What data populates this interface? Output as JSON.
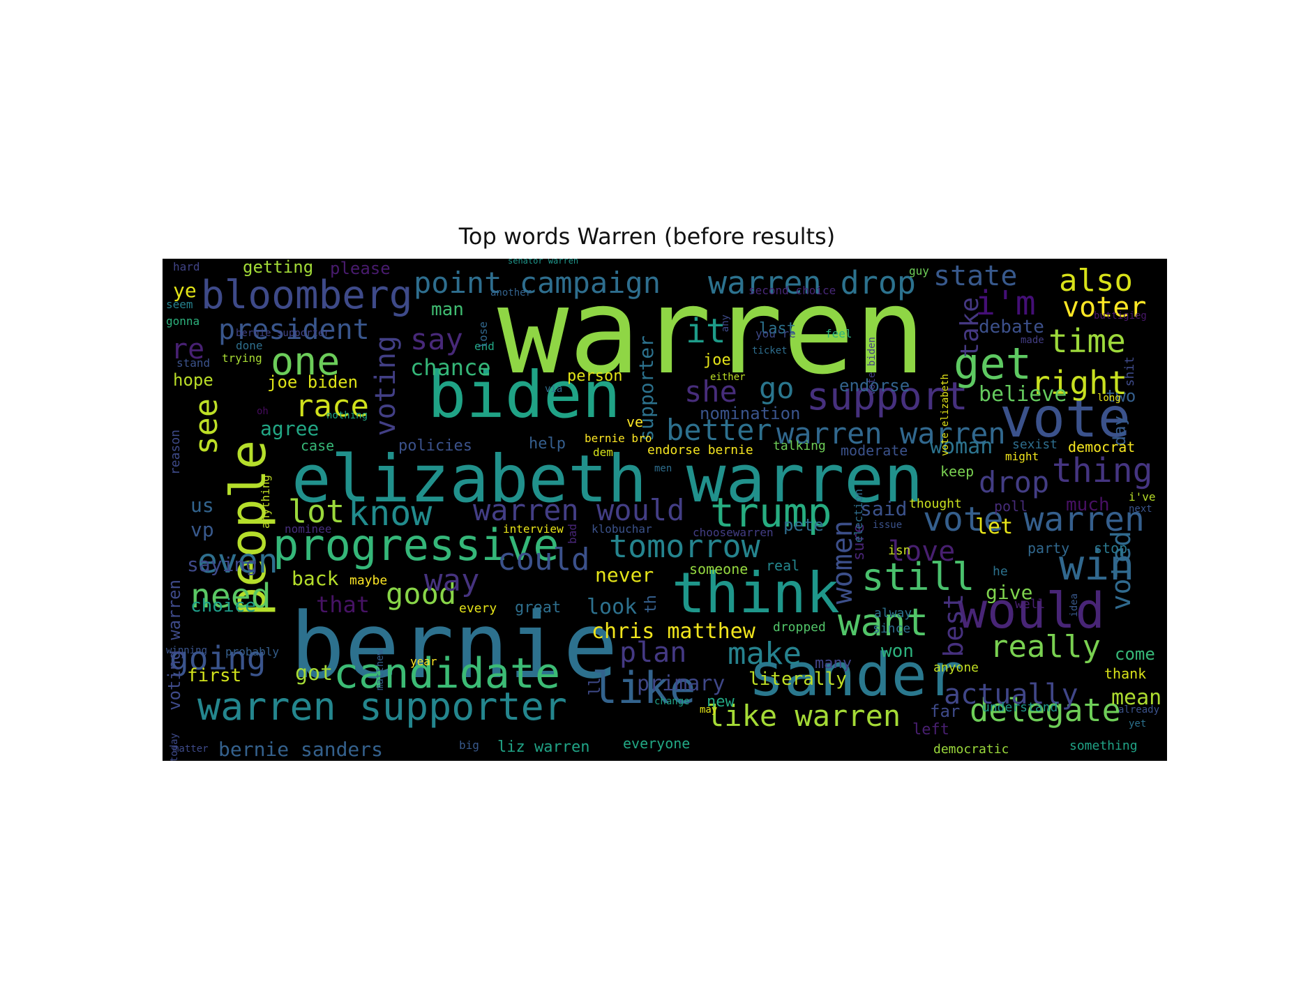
{
  "title": "Top words Warren (before results)",
  "words": [
    {
      "text": "warren",
      "color": "#8fd645"
    },
    {
      "text": "bernie",
      "color": "#2d718e"
    },
    {
      "text": "elizabeth warren",
      "color": "#21918c"
    },
    {
      "text": "biden",
      "color": "#20a386"
    },
    {
      "text": "sander",
      "color": "#2a788e"
    },
    {
      "text": "think",
      "color": "#1f978b"
    },
    {
      "text": "people",
      "color": "#b5de2b"
    },
    {
      "text": "vote",
      "color": "#3b528b"
    },
    {
      "text": "would",
      "color": "#482576"
    },
    {
      "text": "progressive",
      "color": "#35b779"
    },
    {
      "text": "candidate",
      "color": "#3cbb75"
    },
    {
      "text": "warren supporter",
      "color": "#24868e"
    },
    {
      "text": "like",
      "color": "#33638d"
    },
    {
      "text": "bloomberg",
      "color": "#3e4a89"
    },
    {
      "text": "trump",
      "color": "#27ad81"
    },
    {
      "text": "win",
      "color": "#31688e"
    },
    {
      "text": "get",
      "color": "#5ec962"
    },
    {
      "text": "support",
      "color": "#46307e"
    },
    {
      "text": "still",
      "color": "#4ac16d"
    },
    {
      "text": "want",
      "color": "#52c569"
    },
    {
      "text": "warren drop",
      "color": "#2c728e"
    },
    {
      "text": "point campaign",
      "color": "#2e6e8e"
    },
    {
      "text": "vote warren",
      "color": "#355f8d"
    },
    {
      "text": "warren warren",
      "color": "#31688e"
    },
    {
      "text": "tomorrow",
      "color": "#25848e"
    },
    {
      "text": "one",
      "color": "#6ccd5a"
    },
    {
      "text": "know",
      "color": "#228c8d"
    },
    {
      "text": "president",
      "color": "#39568c"
    },
    {
      "text": "also",
      "color": "#d8e219"
    },
    {
      "text": "time",
      "color": "#9dd93b"
    },
    {
      "text": "right",
      "color": "#c8e020"
    },
    {
      "text": "voter",
      "color": "#fde725"
    },
    {
      "text": "delegate",
      "color": "#6ece58"
    },
    {
      "text": "really",
      "color": "#7ad151"
    },
    {
      "text": "like warren",
      "color": "#a5db36"
    },
    {
      "text": "make",
      "color": "#26828e"
    },
    {
      "text": "going",
      "color": "#3a548c"
    },
    {
      "text": "need",
      "color": "#5ac864"
    },
    {
      "text": "even",
      "color": "#2e6f8e"
    },
    {
      "text": "could",
      "color": "#3b518b"
    },
    {
      "text": "good",
      "color": "#88d548"
    },
    {
      "text": "warren would",
      "color": "#433e85"
    },
    {
      "text": "lot",
      "color": "#9bd93c"
    },
    {
      "text": "race",
      "color": "#d0e11c"
    },
    {
      "text": "see",
      "color": "#bddf26"
    },
    {
      "text": "say",
      "color": "#482979"
    },
    {
      "text": "it",
      "color": "#1e9c89"
    },
    {
      "text": "i'm",
      "color": "#440f76"
    },
    {
      "text": "thing",
      "color": "#453581"
    },
    {
      "text": "drop",
      "color": "#433d84"
    },
    {
      "text": "better",
      "color": "#2d708e"
    },
    {
      "text": "she",
      "color": "#472d7b"
    },
    {
      "text": "go",
      "color": "#2a768e"
    },
    {
      "text": "love",
      "color": "#481f70"
    },
    {
      "text": "way",
      "color": "#46337f"
    },
    {
      "text": "plan",
      "color": "#443983"
    },
    {
      "text": "actually",
      "color": "#404688"
    },
    {
      "text": "voting",
      "color": "#423f85"
    },
    {
      "text": "voted",
      "color": "#306a8e"
    },
    {
      "text": "women",
      "color": "#3c4f8a"
    },
    {
      "text": "best",
      "color": "#46307e"
    },
    {
      "text": "take",
      "color": "#453882"
    },
    {
      "text": "state",
      "color": "#38598c"
    },
    {
      "text": "chris matthew",
      "color": "#f1e51d"
    },
    {
      "text": "bernie sanders",
      "color": "#34618d"
    },
    {
      "text": "primary",
      "color": "#3f4788"
    },
    {
      "text": "literally",
      "color": "#c0df25"
    },
    {
      "text": "mean",
      "color": "#addc30"
    },
    {
      "text": "woman",
      "color": "#2c738e"
    },
    {
      "text": "believe",
      "color": "#65cb5e"
    },
    {
      "text": "debate",
      "color": "#3c508b"
    },
    {
      "text": "nomination",
      "color": "#3a548c"
    },
    {
      "text": "endorse",
      "color": "#33638d"
    },
    {
      "text": "supporter",
      "color": "#2c728e"
    },
    {
      "text": "chance",
      "color": "#35b779"
    },
    {
      "text": "agree",
      "color": "#22a785"
    },
    {
      "text": "man",
      "color": "#40bd72"
    },
    {
      "text": "ye",
      "color": "#e2e418"
    },
    {
      "text": "re",
      "color": "#482173"
    },
    {
      "text": "saying",
      "color": "#3e4989"
    },
    {
      "text": "back",
      "color": "#b5de2b"
    },
    {
      "text": "that",
      "color": "#471365"
    },
    {
      "text": "choice",
      "color": "#1f9e89"
    },
    {
      "text": "first",
      "color": "#d0e11c"
    },
    {
      "text": "got",
      "color": "#a5db36"
    },
    {
      "text": "us",
      "color": "#32648e"
    },
    {
      "text": "vp",
      "color": "#38598c"
    },
    {
      "text": "look",
      "color": "#2d718e"
    },
    {
      "text": "never",
      "color": "#e5e419"
    },
    {
      "text": "give",
      "color": "#7fd34e"
    },
    {
      "text": "let",
      "color": "#e7e419"
    },
    {
      "text": "said",
      "color": "#3b528b"
    },
    {
      "text": "pete",
      "color": "#2e6e8e"
    },
    {
      "text": "won",
      "color": "#2db27d"
    },
    {
      "text": "come",
      "color": "#37b878"
    },
    {
      "text": "two",
      "color": "#355f8d"
    },
    {
      "text": "day",
      "color": "#365c8d"
    },
    {
      "text": "joe biden",
      "color": "#dde318"
    },
    {
      "text": "hope",
      "color": "#bade28"
    },
    {
      "text": "getting",
      "color": "#a2da37"
    },
    {
      "text": "please",
      "color": "#481b6d"
    },
    {
      "text": "person",
      "color": "#e2e418"
    },
    {
      "text": "last",
      "color": "#2c728e"
    },
    {
      "text": "joe",
      "color": "#e5e419"
    },
    {
      "text": "policies",
      "color": "#3b528b"
    },
    {
      "text": "case",
      "color": "#37b878"
    },
    {
      "text": "far",
      "color": "#3e4a89"
    },
    {
      "text": "thank",
      "color": "#d8e219"
    },
    {
      "text": "keep",
      "color": "#7ad151"
    },
    {
      "text": "democrat",
      "color": "#f6e620"
    },
    {
      "text": "party",
      "color": "#31688e"
    },
    {
      "text": "stop",
      "color": "#2a788e"
    },
    {
      "text": "much",
      "color": "#471063"
    },
    {
      "text": "many",
      "color": "#414487"
    },
    {
      "text": "new",
      "color": "#22a884"
    },
    {
      "text": "liz warren",
      "color": "#20a386"
    },
    {
      "text": "everyone",
      "color": "#22a884"
    },
    {
      "text": "dropped",
      "color": "#52c569"
    },
    {
      "text": "someone",
      "color": "#95d840"
    },
    {
      "text": "real",
      "color": "#24878e"
    },
    {
      "text": "understand",
      "color": "#1f968b"
    },
    {
      "text": "democratic",
      "color": "#9bd93c"
    },
    {
      "text": "something",
      "color": "#20a386"
    },
    {
      "text": "anyone",
      "color": "#c2df23"
    },
    {
      "text": "help",
      "color": "#355e8d"
    },
    {
      "text": "talking",
      "color": "#6ece58"
    },
    {
      "text": "moderate",
      "color": "#3b528b"
    },
    {
      "text": "endorse bernie",
      "color": "#f6e620"
    },
    {
      "text": "maybe",
      "color": "#fde725"
    },
    {
      "text": "every",
      "color": "#e5e419"
    },
    {
      "text": "great",
      "color": "#2e6f8e"
    },
    {
      "text": "thought",
      "color": "#cae11f"
    },
    {
      "text": "poll",
      "color": "#472c7a"
    },
    {
      "text": "sexist",
      "color": "#2e6e8e"
    },
    {
      "text": "might",
      "color": "#f1e51d"
    },
    {
      "text": "i've",
      "color": "#b8de29"
    },
    {
      "text": "next",
      "color": "#3a548c"
    },
    {
      "text": "isn",
      "color": "#c8e020"
    },
    {
      "text": "issue",
      "color": "#3b528b"
    },
    {
      "text": "he",
      "color": "#2c728e"
    },
    {
      "text": "well",
      "color": "#481f70"
    },
    {
      "text": "alway",
      "color": "#2c728e"
    },
    {
      "text": "since",
      "color": "#2e6f8e"
    },
    {
      "text": "sure",
      "color": "#482475"
    },
    {
      "text": "ve",
      "color": "#fde725"
    },
    {
      "text": "bernie bro",
      "color": "#fde725"
    },
    {
      "text": "dem",
      "color": "#d5e21a"
    },
    {
      "text": "men",
      "color": "#2e6e8e"
    },
    {
      "text": "nominee",
      "color": "#472f7d"
    },
    {
      "text": "klobuchar",
      "color": "#3b528b"
    },
    {
      "text": "choosewarren",
      "color": "#433e85"
    },
    {
      "text": "interview",
      "color": "#e8e419"
    },
    {
      "text": "year",
      "color": "#fde725"
    },
    {
      "text": "change",
      "color": "#1fa187"
    },
    {
      "text": "may",
      "color": "#e2e418"
    },
    {
      "text": "big",
      "color": "#38598c"
    },
    {
      "text": "matter",
      "color": "#3e4a89"
    },
    {
      "text": "winning",
      "color": "#3a548c"
    },
    {
      "text": "probably",
      "color": "#355f8d"
    },
    {
      "text": "done",
      "color": "#2e6f8e"
    },
    {
      "text": "trying",
      "color": "#a8db34"
    },
    {
      "text": "stand",
      "color": "#3b528b"
    },
    {
      "text": "seem",
      "color": "#26828e"
    },
    {
      "text": "gonna",
      "color": "#2db27d"
    },
    {
      "text": "hard",
      "color": "#414487"
    },
    {
      "text": "bernie supporter",
      "color": "#414487"
    },
    {
      "text": "nothing",
      "color": "#22a884"
    },
    {
      "text": "oh",
      "color": "#460b5e"
    },
    {
      "text": "another",
      "color": "#33638d"
    },
    {
      "text": "senator warren",
      "color": "#1f968b"
    },
    {
      "text": "second choice",
      "color": "#482878"
    },
    {
      "text": "guy",
      "color": "#6ece58"
    },
    {
      "text": "feel",
      "color": "#2db27d"
    },
    {
      "text": "you're",
      "color": "#3e4a89"
    },
    {
      "text": "ticket",
      "color": "#2e6e8e"
    },
    {
      "text": "either",
      "color": "#bddf26"
    },
    {
      "text": "made",
      "color": "#433e85"
    },
    {
      "text": "buttigieg",
      "color": "#48186a"
    },
    {
      "text": "long",
      "color": "#e7e419"
    },
    {
      "text": "already",
      "color": "#3b528b"
    },
    {
      "text": "yet",
      "color": "#2c728e"
    },
    {
      "text": "left",
      "color": "#481f70"
    },
    {
      "text": "end",
      "color": "#22a785"
    },
    {
      "text": "via",
      "color": "#2e6e8e"
    },
    {
      "text": "reason",
      "color": "#3e4a89"
    },
    {
      "text": "anything",
      "color": "#c0df25"
    },
    {
      "text": "voting warren",
      "color": "#3e4a89"
    },
    {
      "text": "lose",
      "color": "#31688e"
    },
    {
      "text": "any",
      "color": "#3e4a89"
    },
    {
      "text": "vote elizabeth",
      "color": "#e2e418"
    },
    {
      "text": "vote biden",
      "color": "#433e85"
    },
    {
      "text": "election",
      "color": "#2e6e8e"
    },
    {
      "text": "bad",
      "color": "#482677"
    },
    {
      "text": "th",
      "color": "#355f8d"
    },
    {
      "text": "ll",
      "color": "#3e4a89"
    },
    {
      "text": "matthew",
      "color": "#355f8d"
    },
    {
      "text": "shit",
      "color": "#3e4a89"
    },
    {
      "text": "idea",
      "color": "#38598c"
    },
    {
      "text": "today",
      "color": "#3e4a89"
    }
  ]
}
